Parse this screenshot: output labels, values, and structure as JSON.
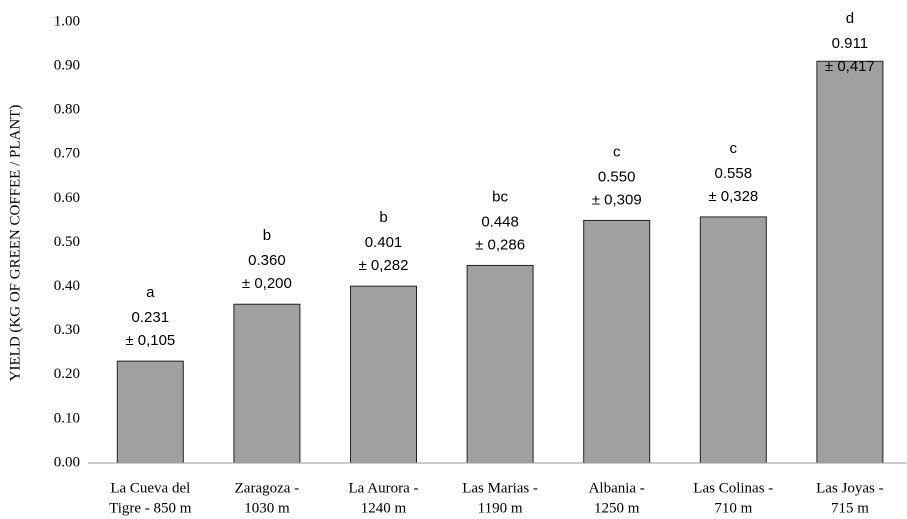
{
  "chart_data": {
    "type": "bar",
    "y_label": "YIELD (KG OF GREEN COFFEE / PLANT)",
    "categories": [
      [
        "La Cueva del",
        "Tigre - 850 m"
      ],
      [
        "Zaragoza -",
        "1030 m"
      ],
      [
        "La Aurora -",
        "1240 m"
      ],
      [
        "Las Marias -",
        "1190 m"
      ],
      [
        "Albania -",
        "1250 m"
      ],
      [
        "Las Colinas -",
        "710 m"
      ],
      [
        "Las Joyas -",
        "715 m"
      ]
    ],
    "values": [
      0.231,
      0.36,
      0.401,
      0.448,
      0.55,
      0.558,
      0.911
    ],
    "value_labels": [
      "0.231",
      "0.360",
      "0.401",
      "0.448",
      "0.550",
      "0.558",
      "0.911"
    ],
    "errors": [
      0.105,
      0.2,
      0.282,
      0.286,
      0.309,
      0.328,
      0.417
    ],
    "error_labels": [
      "± 0,105",
      "± 0,200",
      "± 0,282",
      "± 0,286",
      "± 0,309",
      "± 0,328",
      "± 0,417"
    ],
    "groups": [
      "a",
      "b",
      "b",
      "bc",
      "c",
      "c",
      "d"
    ],
    "color": "#a0a0a0",
    "ylim": [
      0,
      1
    ],
    "yticks": [
      {
        "value": 0,
        "label": "0.00"
      },
      {
        "value": 0.1,
        "label": "0.10"
      },
      {
        "value": 0.2,
        "label": "0.20"
      },
      {
        "value": 0.3,
        "label": "0.30"
      },
      {
        "value": 0.4,
        "label": "0.40"
      },
      {
        "value": 0.5,
        "label": "0.50"
      },
      {
        "value": 0.6,
        "label": "0.60"
      },
      {
        "value": 0.7,
        "label": "0.70"
      },
      {
        "value": 0.8,
        "label": "0.80"
      },
      {
        "value": 0.9,
        "label": "0.90"
      },
      {
        "value": 1,
        "label": "1.00"
      }
    ],
    "grid": false
  }
}
